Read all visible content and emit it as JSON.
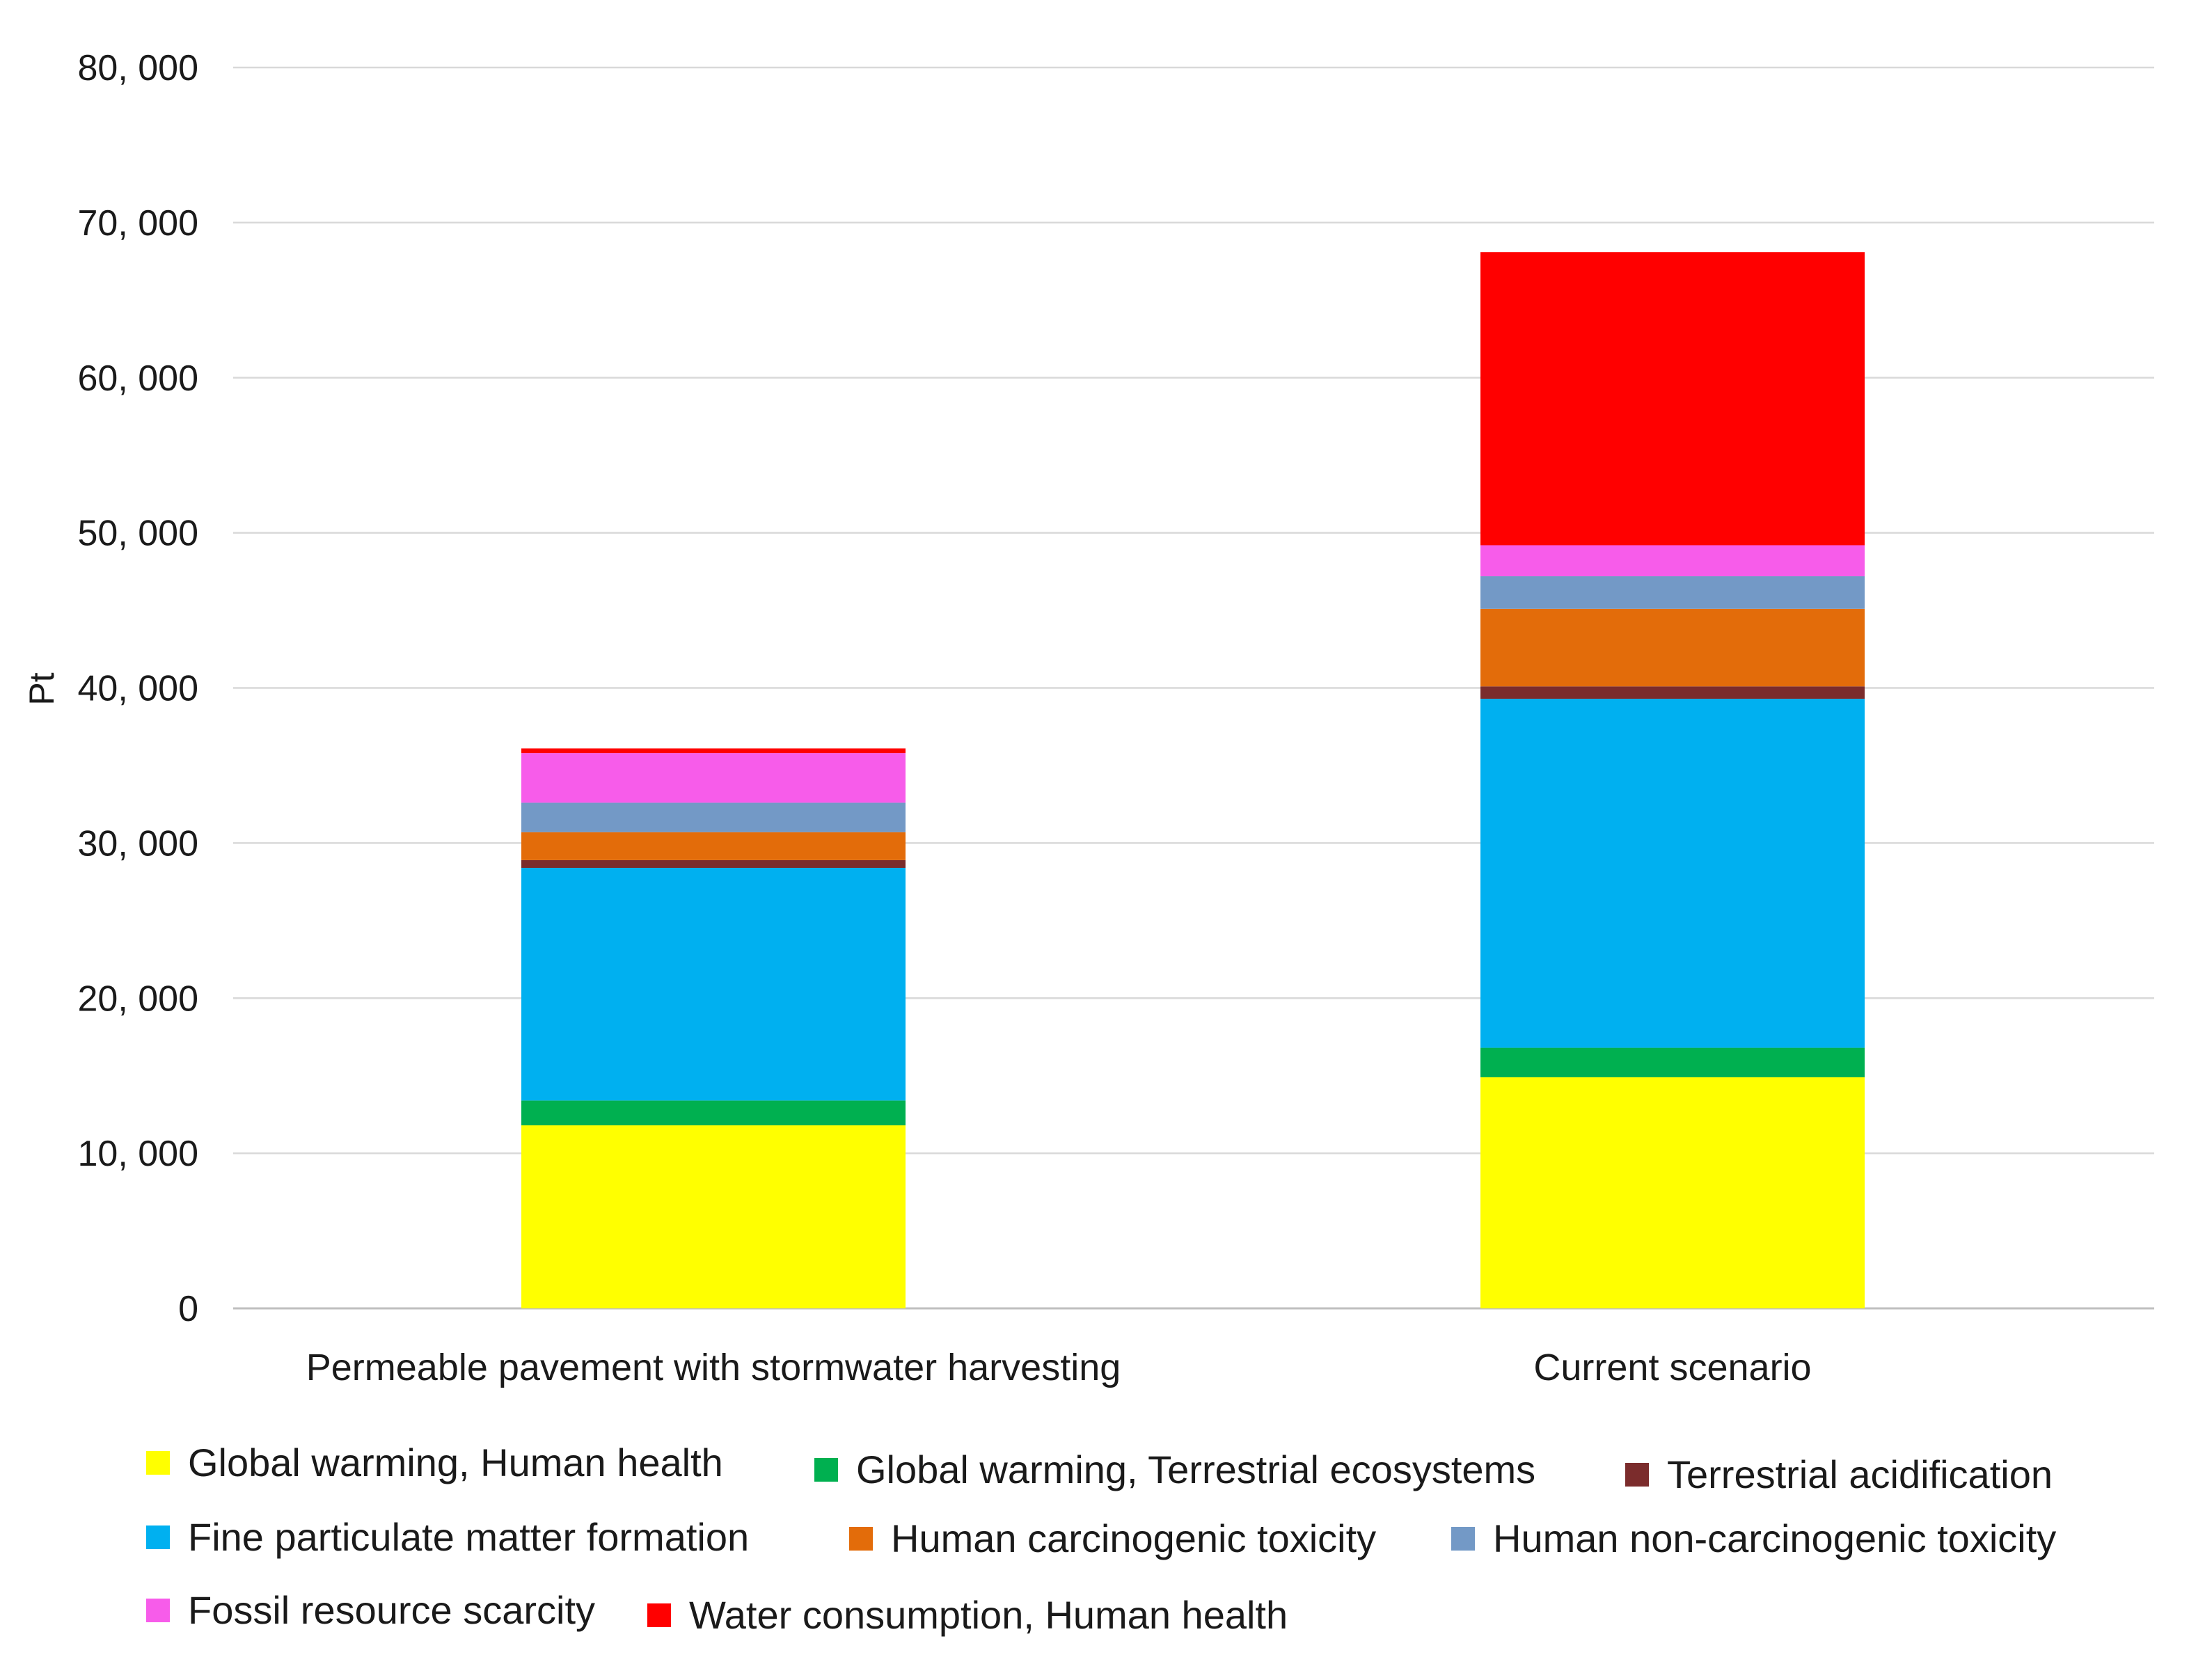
{
  "chart_data": {
    "type": "bar",
    "stacked": true,
    "title": "",
    "xlabel": "",
    "ylabel": "Pt",
    "ylim": [
      0,
      80000
    ],
    "yticks": [
      0,
      10000,
      20000,
      30000,
      40000,
      50000,
      60000,
      70000,
      80000
    ],
    "ytick_labels": [
      "0",
      "10, 000",
      "20, 000",
      "30, 000",
      "40, 000",
      "50, 000",
      "60, 000",
      "70, 000",
      "80, 000"
    ],
    "grid": true,
    "legend_position": "bottom",
    "categories": [
      "Permeable pavement with stormwater harvesting",
      "Current scenario"
    ],
    "series": [
      {
        "name": "Global warming, Human health",
        "color": "#ffff00",
        "values": [
          11800,
          14900
        ]
      },
      {
        "name": "Global warming, Terrestrial ecosystems",
        "color": "#00b050",
        "values": [
          1600,
          1900
        ]
      },
      {
        "name": "Fine particulate matter formation",
        "color": "#00b0f0",
        "values": [
          15000,
          22500
        ]
      },
      {
        "name": "Terrestrial acidification",
        "color": "#7b2c2c",
        "values": [
          500,
          800
        ]
      },
      {
        "name": "Human carcinogenic toxicity",
        "color": "#e36c0a",
        "values": [
          1800,
          5000
        ]
      },
      {
        "name": "Human non-carcinogenic toxicity",
        "color": "#7399c6",
        "values": [
          1900,
          2100
        ]
      },
      {
        "name": "Fossil resource scarcity",
        "color": "#f75cea",
        "values": [
          3200,
          2000
        ]
      },
      {
        "name": "Water consumption, Human health",
        "color": "#ff0000",
        "values": [
          300,
          18900
        ]
      }
    ],
    "legend_order": [
      "Global warming, Human health",
      "Global warming, Terrestrial ecosystems",
      "Terrestrial acidification",
      "Fine particulate matter formation",
      "Human carcinogenic toxicity",
      "Human non-carcinogenic toxicity",
      "Fossil resource scarcity",
      "Water consumption, Human health"
    ]
  }
}
